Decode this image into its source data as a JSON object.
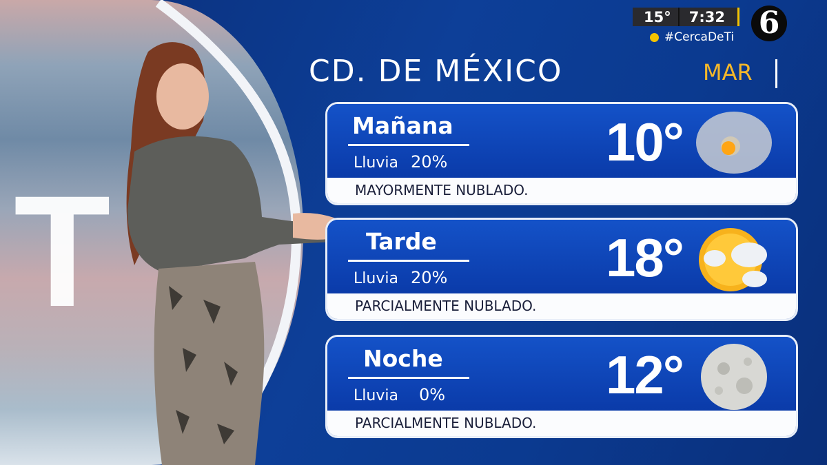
{
  "header": {
    "city": "CD. DE MÉXICO",
    "day": "MAR"
  },
  "ticker": {
    "temperature": "15°",
    "time": "7:32",
    "hashtag": "#CercaDeTi",
    "channel_logo": "6"
  },
  "background_logo": "T",
  "forecast": [
    {
      "period": "Mañana",
      "rain_label": "Lluvia",
      "rain": "20%",
      "temp": "10°",
      "description": "MAYORMENTE NUBLADO.",
      "icon": "mostly-cloudy-icon"
    },
    {
      "period": "Tarde",
      "rain_label": "Lluvia",
      "rain": "20%",
      "temp": "18°",
      "description": "PARCIALMENTE NUBLADO.",
      "icon": "partly-cloudy-icon"
    },
    {
      "period": "Noche",
      "rain_label": "Lluvia",
      "rain": "0%",
      "temp": "12°",
      "description": "PARCIALMENTE NUBLADO.",
      "icon": "moon-icon"
    }
  ],
  "colors": {
    "accent_yellow": "#f5b82a",
    "card_blue": "#1452c8",
    "background_blue": "#0b2e78"
  }
}
